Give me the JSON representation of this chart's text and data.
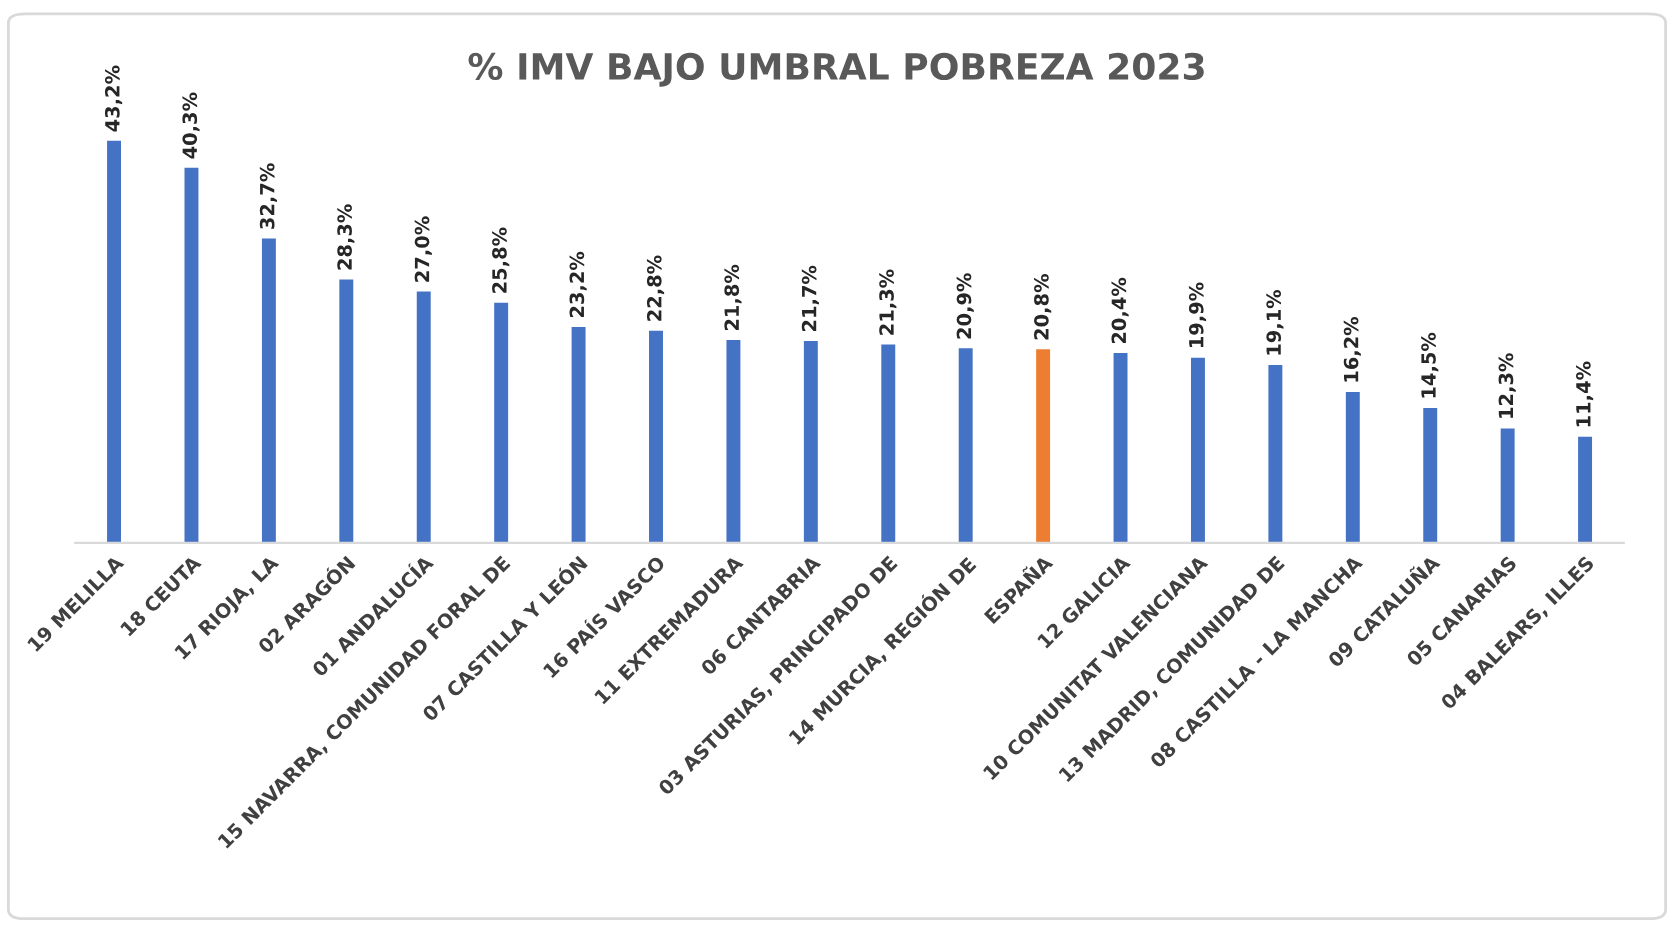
{
  "chart_data": {
    "type": "bar",
    "title": "% IMV BAJO UMBRAL POBREZA 2023",
    "categories": [
      "19 MELILLA",
      "18 CEUTA",
      "17 RIOJA, LA",
      "02 ARAGÓN",
      "01 ANDALUCÍA",
      "15 NAVARRA, COMUNIDAD FORAL DE",
      "07 CASTILLA Y LEÓN",
      "16 PAÍS VASCO",
      "11 EXTREMADURA",
      "06 CANTABRIA",
      "03 ASTURIAS, PRINCIPADO DE",
      "14 MURCIA, REGIÓN DE",
      "ESPAÑA",
      "12 GALICIA",
      "10 COMUNITAT VALENCIANA",
      "13 MADRID, COMUNIDAD DE",
      "08 CASTILLA - LA MANCHA",
      "09 CATALUÑA",
      "05 CANARIAS",
      "04 BALEARS, ILLES"
    ],
    "values": [
      43.2,
      40.3,
      32.7,
      28.3,
      27.0,
      25.8,
      23.2,
      22.8,
      21.8,
      21.7,
      21.3,
      20.9,
      20.8,
      20.4,
      19.9,
      19.1,
      16.2,
      14.5,
      12.3,
      11.4
    ],
    "value_labels": [
      "43,2%",
      "40,3%",
      "32,7%",
      "28,3%",
      "27,0%",
      "25,8%",
      "23,2%",
      "22,8%",
      "21,8%",
      "21,7%",
      "21,3%",
      "20,9%",
      "20,8%",
      "20,4%",
      "19,9%",
      "19,1%",
      "16,2%",
      "14,5%",
      "12,3%",
      "11,4%"
    ],
    "colors": [
      "#4472c4",
      "#4472c4",
      "#4472c4",
      "#4472c4",
      "#4472c4",
      "#4472c4",
      "#4472c4",
      "#4472c4",
      "#4472c4",
      "#4472c4",
      "#4472c4",
      "#4472c4",
      "#ed7d31",
      "#4472c4",
      "#4472c4",
      "#4472c4",
      "#4472c4",
      "#4472c4",
      "#4472c4",
      "#4472c4"
    ],
    "grid": false,
    "legend": false
  }
}
